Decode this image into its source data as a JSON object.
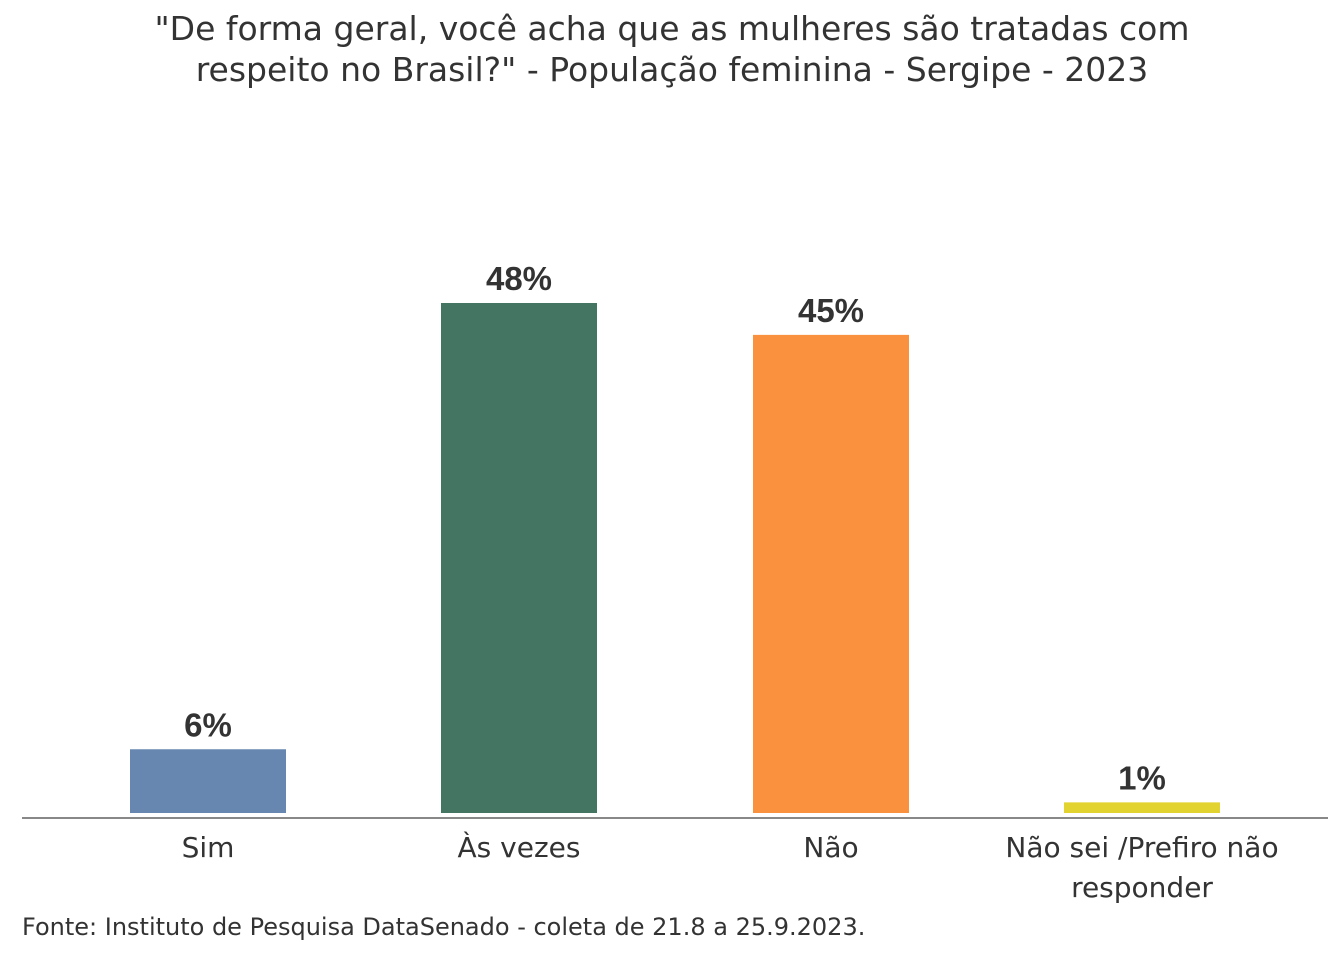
{
  "chart_data": {
    "type": "bar",
    "title": "\"De forma geral, você acha que as mulheres são tratadas com respeito no Brasil?\" - População feminina - Sergipe - 2023",
    "title_lines": [
      "\"De forma geral, você acha que as mulheres são tratadas com",
      "respeito no Brasil?\" - População feminina - Sergipe - 2023"
    ],
    "categories": [
      "Sim",
      "Às vezes",
      "Não",
      "Não sei /Prefiro não responder"
    ],
    "category_lines": [
      [
        "Sim"
      ],
      [
        "Às vezes"
      ],
      [
        "Não"
      ],
      [
        "Não sei /Prefiro não",
        "responder"
      ]
    ],
    "values": [
      6,
      48,
      45,
      1
    ],
    "value_labels": [
      "6%",
      "48%",
      "45%",
      "1%"
    ],
    "colors": [
      "#6787b0",
      "#447563",
      "#f9913e",
      "#e3d331"
    ],
    "ylim": [
      0,
      48
    ],
    "grid": false,
    "legend": "none",
    "xlabel": "",
    "ylabel": ""
  },
  "source": "Fonte: Instituto de Pesquisa DataSenado - coleta de 21.8 a 25.9.2023."
}
